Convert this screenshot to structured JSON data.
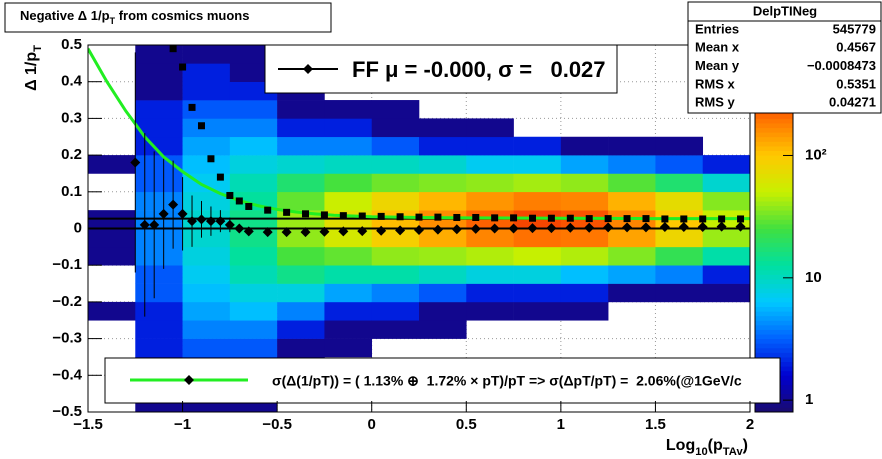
{
  "chart_data": {
    "type": "heatmap",
    "title": [
      {
        "text": "Negative Δ 1/p"
      },
      {
        "text": "T",
        "sub": true
      },
      {
        "text": " from cosmics muons"
      }
    ],
    "x_label": [
      {
        "text": "Log"
      },
      {
        "text": "10",
        "sub": true
      },
      {
        "text": "(p"
      },
      {
        "text": "TAv",
        "sub": true
      },
      {
        "text": ")"
      }
    ],
    "y_label": [
      {
        "text": "Δ 1/p"
      },
      {
        "text": "T",
        "sub": true
      }
    ],
    "xlim": [
      -1.5,
      2
    ],
    "xticks": [
      {
        "value": -1.5,
        "label": "−1.5"
      },
      {
        "value": -1,
        "label": "−1"
      },
      {
        "value": -0.5,
        "label": "−0.5"
      },
      0,
      0.5,
      1,
      1.5,
      2
    ],
    "ylim": [
      -0.5,
      0.5
    ],
    "yticks": [
      {
        "value": -0.5,
        "label": "−0.5"
      },
      {
        "value": -0.4,
        "label": "−0.4"
      },
      {
        "value": -0.3,
        "label": "−0.3"
      },
      {
        "value": -0.2,
        "label": "−0.2"
      },
      {
        "value": -0.1,
        "label": "−0.1"
      },
      0,
      0.1,
      0.2,
      0.3,
      0.4,
      0.5
    ],
    "grid": true,
    "heatmap": {
      "xbins": [
        -1.5,
        -1.25,
        -1,
        -0.75,
        -0.5,
        -0.25,
        0,
        0.25,
        0.5,
        0.75,
        1,
        1.25,
        1.5,
        1.75,
        2
      ],
      "ybins": [
        -0.5,
        -0.45,
        -0.4,
        -0.35,
        -0.3,
        -0.25,
        -0.2,
        -0.15,
        -0.1,
        -0.05,
        0,
        0.05,
        0.1,
        0.15,
        0.2,
        0.25,
        0.3,
        0.35,
        0.4,
        0.45,
        0.5
      ],
      "counts": [
        [
          0,
          0,
          0,
          0,
          0,
          1,
          0,
          0,
          1,
          1,
          1,
          0,
          0,
          1,
          0,
          0,
          0,
          0,
          0,
          0
        ],
        [
          1,
          1,
          1,
          2,
          2,
          2,
          3,
          3,
          4,
          4,
          4,
          4,
          3,
          3,
          2,
          2,
          2,
          1,
          1,
          1
        ],
        [
          1,
          2,
          2,
          3,
          4,
          5,
          6,
          7,
          8,
          9,
          9,
          8,
          7,
          6,
          5,
          4,
          3,
          2,
          2,
          1
        ],
        [
          1,
          1,
          2,
          3,
          4,
          6,
          8,
          11,
          13,
          15,
          15,
          13,
          11,
          8,
          6,
          4,
          3,
          2,
          1,
          1
        ],
        [
          0,
          0,
          1,
          1,
          2,
          4,
          8,
          15,
          26,
          38,
          40,
          30,
          18,
          9,
          4,
          2,
          1,
          1,
          0,
          0
        ],
        [
          0,
          0,
          0,
          1,
          1,
          2,
          5,
          12,
          30,
          58,
          70,
          52,
          26,
          10,
          4,
          2,
          1,
          0,
          0,
          0
        ],
        [
          0,
          0,
          0,
          0,
          1,
          2,
          4,
          12,
          38,
          90,
          110,
          80,
          32,
          10,
          3,
          1,
          1,
          0,
          0,
          0
        ],
        [
          0,
          0,
          0,
          0,
          1,
          1,
          3,
          10,
          40,
          125,
          160,
          115,
          35,
          9,
          2,
          1,
          0,
          0,
          0,
          0
        ],
        [
          0,
          0,
          0,
          0,
          0,
          1,
          2,
          8,
          45,
          170,
          220,
          150,
          38,
          7,
          2,
          1,
          0,
          0,
          0,
          0
        ],
        [
          0,
          0,
          0,
          0,
          0,
          1,
          2,
          8,
          50,
          200,
          260,
          180,
          42,
          7,
          2,
          0,
          0,
          0,
          0,
          0
        ],
        [
          0,
          0,
          0,
          0,
          0,
          1,
          2,
          6,
          45,
          190,
          240,
          170,
          38,
          5,
          1,
          0,
          0,
          0,
          0,
          0
        ],
        [
          0,
          0,
          0,
          0,
          0,
          0,
          1,
          5,
          35,
          135,
          170,
          120,
          28,
          4,
          1,
          0,
          0,
          0,
          0,
          0
        ],
        [
          0,
          0,
          0,
          0,
          0,
          0,
          1,
          4,
          22,
          80,
          100,
          72,
          18,
          3,
          1,
          0,
          0,
          0,
          0,
          0
        ],
        [
          0,
          0,
          0,
          0,
          0,
          0,
          1,
          2,
          12,
          40,
          50,
          36,
          9,
          2,
          0,
          0,
          0,
          0,
          0,
          0
        ]
      ],
      "zlim": [
        0.8,
        800
      ],
      "zticks": [
        1,
        10,
        {
          "value": 100,
          "label": "10²"
        }
      ],
      "log_z": true,
      "palette": [
        "#1a0b6e",
        "#0000d0",
        "#0060ff",
        "#00c8ff",
        "#00e0a0",
        "#40e040",
        "#c8f000",
        "#ffc800",
        "#ff7000",
        "#e80000",
        "#a00000"
      ]
    },
    "series": [
      {
        "name": "σ(Δ(1/pT)) = ( 1.13% ⊕  1.72% × pT)/pT => σ(ΔpT/pT) =  2.06%(@1GeV/c",
        "type": "line",
        "color": "#22ee22",
        "x": [
          -1.5,
          -1.4,
          -1.3,
          -1.2,
          -1.1,
          -1.0,
          -0.9,
          -0.8,
          -0.7,
          -0.6,
          -0.5,
          -0.4,
          -0.3,
          -0.2,
          -0.1,
          0,
          0.25,
          0.5,
          1,
          1.5,
          2
        ],
        "values": [
          0.49,
          0.4,
          0.32,
          0.25,
          0.195,
          0.155,
          0.12,
          0.095,
          0.076,
          0.062,
          0.052,
          0.045,
          0.04,
          0.036,
          0.034,
          0.032,
          0.03,
          0.029,
          0.028,
          0.027,
          0.027
        ]
      },
      {
        "type": "scatter",
        "marker": "square",
        "color": "#000000",
        "x": [
          -1.05,
          -1.0,
          -0.95,
          -0.9,
          -0.85,
          -0.8,
          -0.75,
          -0.7,
          -0.65,
          -0.55,
          -0.45,
          -0.35,
          -0.25,
          -0.15,
          -0.05,
          0.05,
          0.15,
          0.25,
          0.35,
          0.45,
          0.55,
          0.65,
          0.75,
          0.85,
          0.95,
          1.05,
          1.15,
          1.25,
          1.35,
          1.45,
          1.55,
          1.65,
          1.75,
          1.85,
          1.95
        ],
        "values": [
          0.49,
          0.44,
          0.33,
          0.28,
          0.19,
          0.14,
          0.09,
          0.075,
          0.06,
          0.05,
          0.044,
          0.04,
          0.037,
          0.035,
          0.034,
          0.033,
          0.032,
          0.031,
          0.031,
          0.03,
          0.03,
          0.029,
          0.029,
          0.028,
          0.028,
          0.028,
          0.027,
          0.027,
          0.027,
          0.027,
          0.026,
          0.026,
          0.026,
          0.026,
          0.026
        ]
      },
      {
        "type": "errorbar",
        "marker": "diamond",
        "color": "#000000",
        "x": [
          -1.25,
          -1.2,
          -1.15,
          -1.1,
          -1.05,
          -1.0,
          -0.95,
          -0.9,
          -0.85,
          -0.8,
          -0.75,
          -0.7,
          -0.65,
          -0.55,
          -0.45,
          -0.35,
          -0.25,
          -0.15,
          -0.05,
          0.05,
          0.15,
          0.25,
          0.35,
          0.45,
          0.55,
          0.65,
          0.75,
          0.85,
          0.95,
          1.05,
          1.15,
          1.25,
          1.35,
          1.45,
          1.55,
          1.65,
          1.75,
          1.85,
          1.95
        ],
        "values": [
          0.18,
          0.01,
          0.01,
          0.04,
          0.065,
          0.04,
          0.02,
          0.025,
          0.02,
          0.02,
          0.01,
          0,
          -0.008,
          -0.01,
          -0.01,
          -0.01,
          -0.009,
          -0.008,
          -0.007,
          -0.006,
          -0.005,
          -0.004,
          -0.003,
          -0.002,
          -0.001,
          0,
          0,
          0.001,
          0.001,
          0.002,
          0.002,
          0.003,
          0.003,
          0.003,
          0.004,
          0.004,
          0.004,
          0.005,
          0.005
        ],
        "errors": [
          0.3,
          0.25,
          0.2,
          0.15,
          0.12,
          0.1,
          0.07,
          0.05,
          0.04,
          0.03,
          0.02,
          0.01,
          0.005,
          0.003,
          0.003,
          0.002,
          0.002,
          0.002,
          0.002,
          0.002,
          0.002,
          0.002,
          0.002,
          0.002,
          0.002,
          0.002,
          0.002,
          0.002,
          0.002,
          0.002,
          0.002,
          0.002,
          0.002,
          0.002,
          0.002,
          0.002,
          0.002,
          0.002,
          0.002
        ]
      }
    ],
    "fit": {
      "name": "FF μ = -0.000, σ =   0.027",
      "mu": 0,
      "sigma": 0.027,
      "color": "#000000"
    },
    "stats": {
      "title": "DelpTINeg",
      "rows": [
        {
          "name": "Entries",
          "value": 545779
        },
        {
          "name": "Mean x",
          "value": 0.4567
        },
        {
          "name": "Mean y",
          "value": -0.0008473,
          "value_label": "−0.0008473"
        },
        {
          "name": "RMS x",
          "value": 0.5351
        },
        {
          "name": "RMS y",
          "value": 0.04271
        }
      ]
    }
  }
}
